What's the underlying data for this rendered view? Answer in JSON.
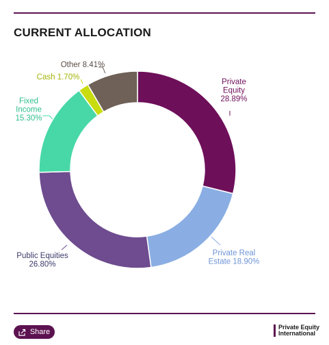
{
  "header": {
    "title": "CURRENT ALLOCATION"
  },
  "footer": {
    "share_label": "Share",
    "brand_line1": "Private Equity",
    "brand_line2": "International"
  },
  "colors": {
    "rule": "#5c1250",
    "private_equity": "#6e0f5a",
    "private_real_estate": "#8aaee3",
    "public_equities": "#6e4c8f",
    "fixed_income": "#48d8a8",
    "cash": "#c8dc10",
    "other": "#6f6157"
  },
  "chart_data": {
    "type": "pie",
    "donut": true,
    "title": "CURRENT ALLOCATION",
    "slices": [
      {
        "label": [
          "Private",
          "Equity",
          "28.89%"
        ],
        "value": 28.89,
        "color": "#6e0f5a",
        "text_color": "#6e0f5a"
      },
      {
        "label": [
          "Private Real",
          "Estate 18.90%"
        ],
        "value": 18.9,
        "color": "#8aaee3",
        "text_color": "#6f94d6"
      },
      {
        "label": [
          "Public Equities",
          "26.80%"
        ],
        "value": 26.8,
        "color": "#6e4c8f",
        "text_color": "#3a3a6a"
      },
      {
        "label": [
          "Fixed",
          "Income",
          "15.30%"
        ],
        "value": 15.3,
        "color": "#48d8a8",
        "text_color": "#2fbf8f"
      },
      {
        "label": [
          "Cash 1.70%"
        ],
        "value": 1.7,
        "color": "#c8dc10",
        "text_color": "#a3b40a"
      },
      {
        "label": [
          "Other 8.41%"
        ],
        "value": 8.41,
        "color": "#6f6157",
        "text_color": "#5a4d44"
      }
    ]
  }
}
